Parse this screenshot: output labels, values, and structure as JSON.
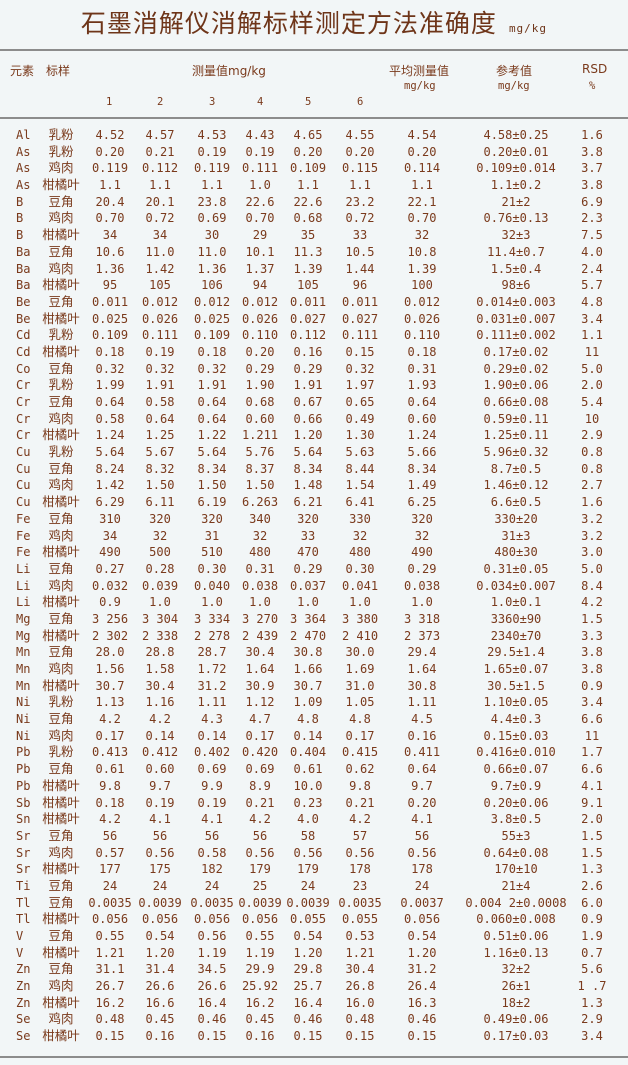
{
  "title": "石墨消解仪消解标样测定方法准确度",
  "title_unit": "mg/kg",
  "header": {
    "element": "元素",
    "sample": "标样",
    "measured": "测量值mg/kg",
    "replicates": [
      "1",
      "2",
      "3",
      "4",
      "5",
      "6"
    ],
    "average": "平均测量值",
    "average_unit": "mg/kg",
    "reference": "参考值",
    "reference_unit": "mg/kg",
    "rsd": "RSD",
    "rsd_unit": "%"
  },
  "rows": [
    [
      "Al",
      "乳粉",
      "4.52",
      "4.57",
      "4.53",
      "4.43",
      "4.65",
      "4.55",
      "4.54",
      "4.58±0.25",
      "1.6"
    ],
    [
      "As",
      "乳粉",
      "0.20",
      "0.21",
      "0.19",
      "0.19",
      "0.20",
      "0.20",
      "0.20",
      "0.20±0.01",
      "3.8"
    ],
    [
      "As",
      "鸡肉",
      "0.119",
      "0.112",
      "0.119",
      "0.111",
      "0.109",
      "0.115",
      "0.114",
      "0.109±0.014",
      "3.7"
    ],
    [
      "As",
      "柑橘叶",
      "1.1",
      "1.1",
      "1.1",
      "1.0",
      "1.1",
      "1.1",
      "1.1",
      "1.1±0.2",
      "3.8"
    ],
    [
      "B",
      "豆角",
      "20.4",
      "20.1",
      "23.8",
      "22.6",
      "22.6",
      "23.2",
      "22.1",
      "21±2",
      "6.9"
    ],
    [
      "B",
      "鸡肉",
      "0.70",
      "0.72",
      "0.69",
      "0.70",
      "0.68",
      "0.72",
      "0.70",
      "0.76±0.13",
      "2.3"
    ],
    [
      "B",
      "柑橘叶",
      "34",
      "34",
      "30",
      "29",
      "35",
      "33",
      "32",
      "32±3",
      "7.5"
    ],
    [
      "Ba",
      "豆角",
      "10.6",
      "11.0",
      "11.0",
      "10.1",
      "11.3",
      "10.5",
      "10.8",
      "11.4±0.7",
      "4.0"
    ],
    [
      "Ba",
      "鸡肉",
      "1.36",
      "1.42",
      "1.36",
      "1.37",
      "1.39",
      "1.44",
      "1.39",
      "1.5±0.4",
      "2.4"
    ],
    [
      "Ba",
      "柑橘叶",
      "95",
      "105",
      "106",
      "94",
      "105",
      "96",
      "100",
      "98±6",
      "5.7"
    ],
    [
      "Be",
      "豆角",
      "0.011",
      "0.012",
      "0.012",
      "0.012",
      "0.011",
      "0.011",
      "0.012",
      "0.014±0.003",
      "4.8"
    ],
    [
      "Be",
      "柑橘叶",
      "0.025",
      "0.026",
      "0.025",
      "0.026",
      "0.027",
      "0.027",
      "0.026",
      "0.031±0.007",
      "3.4"
    ],
    [
      "Cd",
      "乳粉",
      "0.109",
      "0.111",
      "0.109",
      "0.110",
      "0.112",
      "0.111",
      "0.110",
      "0.111±0.002",
      "1.1"
    ],
    [
      "Cd",
      "柑橘叶",
      "0.18",
      "0.19",
      "0.18",
      "0.20",
      "0.16",
      "0.15",
      "0.18",
      "0.17±0.02",
      "11"
    ],
    [
      "Co",
      "豆角",
      "0.32",
      "0.32",
      "0.32",
      "0.29",
      "0.29",
      "0.32",
      "0.31",
      "0.29±0.02",
      "5.0"
    ],
    [
      "Cr",
      "乳粉",
      "1.99",
      "1.91",
      "1.91",
      "1.90",
      "1.91",
      "1.97",
      "1.93",
      "1.90±0.06",
      "2.0"
    ],
    [
      "Cr",
      "豆角",
      "0.64",
      "0.58",
      "0.64",
      "0.68",
      "0.67",
      "0.65",
      "0.64",
      "0.66±0.08",
      "5.4"
    ],
    [
      "Cr",
      "鸡肉",
      "0.58",
      "0.64",
      "0.64",
      "0.60",
      "0.66",
      "0.49",
      "0.60",
      "0.59±0.11",
      "10"
    ],
    [
      "Cr",
      "柑橘叶",
      "1.24",
      "1.25",
      "1.22",
      "1.211",
      "1.20",
      "1.30",
      "1.24",
      "1.25±0.11",
      "2.9"
    ],
    [
      "Cu",
      "乳粉",
      "5.64",
      "5.67",
      "5.64",
      "5.76",
      "5.64",
      "5.63",
      "5.66",
      "5.96±0.32",
      "0.8"
    ],
    [
      "Cu",
      "豆角",
      "8.24",
      "8.32",
      "8.34",
      "8.37",
      "8.34",
      "8.44",
      "8.34",
      "8.7±0.5",
      "0.8"
    ],
    [
      "Cu",
      "鸡肉",
      "1.42",
      "1.50",
      "1.50",
      "1.50",
      "1.48",
      "1.54",
      "1.49",
      "1.46±0.12",
      "2.7"
    ],
    [
      "Cu",
      "柑橘叶",
      "6.29",
      "6.11",
      "6.19",
      "6.263",
      "6.21",
      "6.41",
      "6.25",
      "6.6±0.5",
      "1.6"
    ],
    [
      "Fe",
      "豆角",
      "310",
      "320",
      "320",
      "340",
      "320",
      "330",
      "320",
      "330±20",
      "3.2"
    ],
    [
      "Fe",
      "鸡肉",
      "34",
      "32",
      "31",
      "32",
      "33",
      "32",
      "32",
      "31±3",
      "3.2"
    ],
    [
      "Fe",
      "柑橘叶",
      "490",
      "500",
      "510",
      "480",
      "470",
      "480",
      "490",
      "480±30",
      "3.0"
    ],
    [
      "Li",
      "豆角",
      "0.27",
      "0.28",
      "0.30",
      "0.31",
      "0.29",
      "0.30",
      "0.29",
      "0.31±0.05",
      "5.0"
    ],
    [
      "Li",
      "鸡肉",
      "0.032",
      "0.039",
      "0.040",
      "0.038",
      "0.037",
      "0.041",
      "0.038",
      "0.034±0.007",
      "8.4"
    ],
    [
      "Li",
      "柑橘叶",
      "0.9",
      "1.0",
      "1.0",
      "1.0",
      "1.0",
      "1.0",
      "1.0",
      "1.0±0.1",
      "4.2"
    ],
    [
      "Mg",
      "豆角",
      "3 256",
      "3 304",
      "3 334",
      "3 270",
      "3 364",
      "3 380",
      "3 318",
      "3360±90",
      "1.5"
    ],
    [
      "Mg",
      "柑橘叶",
      "2 302",
      "2 338",
      "2 278",
      "2 439",
      "2 470",
      "2 410",
      "2 373",
      "2340±70",
      "3.3"
    ],
    [
      "Mn",
      "豆角",
      "28.0",
      "28.8",
      "28.7",
      "30.4",
      "30.8",
      "30.0",
      "29.4",
      "29.5±1.4",
      "3.8"
    ],
    [
      "Mn",
      "鸡肉",
      "1.56",
      "1.58",
      "1.72",
      "1.64",
      "1.66",
      "1.69",
      "1.64",
      "1.65±0.07",
      "3.8"
    ],
    [
      "Mn",
      "柑橘叶",
      "30.7",
      "30.4",
      "31.2",
      "30.9",
      "30.7",
      "31.0",
      "30.8",
      "30.5±1.5",
      "0.9"
    ],
    [
      "Ni",
      "乳粉",
      "1.13",
      "1.16",
      "1.11",
      "1.12",
      "1.09",
      "1.05",
      "1.11",
      "1.10±0.05",
      "3.4"
    ],
    [
      "Ni",
      "豆角",
      "4.2",
      "4.2",
      "4.3",
      "4.7",
      "4.8",
      "4.8",
      "4.5",
      "4.4±0.3",
      "6.6"
    ],
    [
      "Ni",
      "鸡肉",
      "0.17",
      "0.14",
      "0.14",
      "0.17",
      "0.14",
      "0.17",
      "0.16",
      "0.15±0.03",
      "11"
    ],
    [
      "Pb",
      "乳粉",
      "0.413",
      "0.412",
      "0.402",
      "0.420",
      "0.404",
      "0.415",
      "0.411",
      "0.416±0.010",
      "1.7"
    ],
    [
      "Pb",
      "豆角",
      "0.61",
      "0.60",
      "0.69",
      "0.69",
      "0.61",
      "0.62",
      "0.64",
      "0.66±0.07",
      "6.6"
    ],
    [
      "Pb",
      "柑橘叶",
      "9.8",
      "9.7",
      "9.9",
      "8.9",
      "10.0",
      "9.8",
      "9.7",
      "9.7±0.9",
      "4.1"
    ],
    [
      "Sb",
      "柑橘叶",
      "0.18",
      "0.19",
      "0.19",
      "0.21",
      "0.23",
      "0.21",
      "0.20",
      "0.20±0.06",
      "9.1"
    ],
    [
      "Sn",
      "柑橘叶",
      "4.2",
      "4.1",
      "4.1",
      "4.2",
      "4.0",
      "4.2",
      "4.1",
      "3.8±0.5",
      "2.0"
    ],
    [
      "Sr",
      "豆角",
      "56",
      "56",
      "56",
      "56",
      "58",
      "57",
      "56",
      "55±3",
      "1.5"
    ],
    [
      "Sr",
      "鸡肉",
      "0.57",
      "0.56",
      "0.58",
      "0.56",
      "0.56",
      "0.56",
      "0.56",
      "0.64±0.08",
      "1.5"
    ],
    [
      "Sr",
      "柑橘叶",
      "177",
      "175",
      "182",
      "179",
      "179",
      "178",
      "178",
      "170±10",
      "1.3"
    ],
    [
      "Ti",
      "豆角",
      "24",
      "24",
      "24",
      "25",
      "24",
      "23",
      "24",
      "21±4",
      "2.6"
    ],
    [
      "Tl",
      "豆角",
      "0.0035",
      "0.0039",
      "0.0035",
      "0.0039",
      "0.0039",
      "0.0035",
      "0.0037",
      "0.004 2±0.0008",
      "6.0"
    ],
    [
      "Tl",
      "柑橘叶",
      "0.056",
      "0.056",
      "0.056",
      "0.056",
      "0.055",
      "0.055",
      "0.056",
      "0.060±0.008",
      "0.9"
    ],
    [
      "V",
      "豆角",
      "0.55",
      "0.54",
      "0.56",
      "0.55",
      "0.54",
      "0.53",
      "0.54",
      "0.51±0.06",
      "1.9"
    ],
    [
      "V",
      "柑橘叶",
      "1.21",
      "1.20",
      "1.19",
      "1.19",
      "1.20",
      "1.21",
      "1.20",
      "1.16±0.13",
      "0.7"
    ],
    [
      "Zn",
      "豆角",
      "31.1",
      "31.4",
      "34.5",
      "29.9",
      "29.8",
      "30.4",
      "31.2",
      "32±2",
      "5.6"
    ],
    [
      "Zn",
      "鸡肉",
      "26.7",
      "26.6",
      "26.6",
      "25.92",
      "25.7",
      "26.8",
      "26.4",
      "26±1",
      "1 .7"
    ],
    [
      "Zn",
      "柑橘叶",
      "16.2",
      "16.6",
      "16.4",
      "16.2",
      "16.4",
      "16.0",
      "16.3",
      "18±2",
      "1.3"
    ],
    [
      "Se",
      "鸡肉",
      "0.48",
      "0.45",
      "0.46",
      "0.45",
      "0.46",
      "0.48",
      "0.46",
      "0.49±0.06",
      "2.9"
    ],
    [
      "Se",
      "柑橘叶",
      "0.15",
      "0.16",
      "0.15",
      "0.16",
      "0.15",
      "0.15",
      "0.15",
      "0.17±0.03",
      "3.4"
    ]
  ]
}
